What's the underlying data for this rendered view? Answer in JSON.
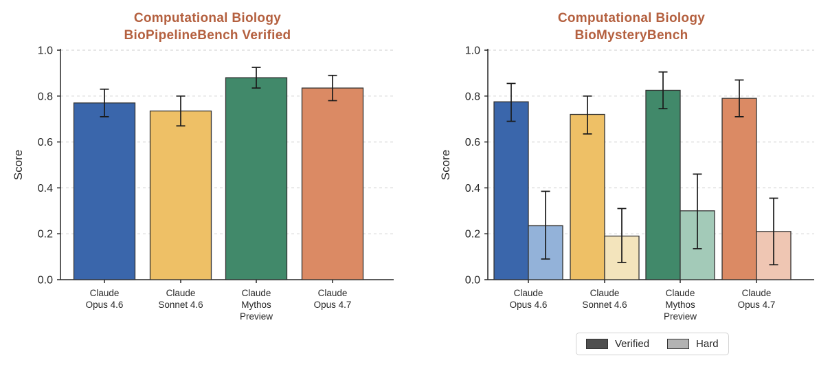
{
  "page": {
    "background": "#ffffff",
    "title_color": "#b4603f",
    "axis_color": "#262626",
    "grid_color": "#d8d8d8",
    "bar_edge_color": "#333333",
    "error_bar_color": "#1a1a1a"
  },
  "chart_data": [
    {
      "type": "bar",
      "title": "Computational Biology BioPipelineBench Verified",
      "title_lines": [
        "Computational Biology",
        "BioPipelineBench Verified"
      ],
      "xlabel": "",
      "ylabel": "Score",
      "ylim": [
        0.0,
        1.0
      ],
      "yticks": [
        "0.0",
        "0.2",
        "0.4",
        "0.6",
        "0.8",
        "1.0"
      ],
      "ytick_values": [
        0.0,
        0.2,
        0.4,
        0.6,
        0.8,
        1.0
      ],
      "grid": "horizontal-dashed",
      "categories": [
        "Claude Opus 4.6",
        "Claude Sonnet 4.6",
        "Claude Mythos Preview",
        "Claude Opus 4.7"
      ],
      "category_lines": [
        [
          "Claude",
          "Opus 4.6"
        ],
        [
          "Claude",
          "Sonnet 4.6"
        ],
        [
          "Claude",
          "Mythos",
          "Preview"
        ],
        [
          "Claude",
          "Opus 4.7"
        ]
      ],
      "series": [
        {
          "name": "Verified",
          "values": [
            0.77,
            0.735,
            0.88,
            0.835
          ],
          "error_low": [
            0.71,
            0.67,
            0.835,
            0.78
          ],
          "error_high": [
            0.83,
            0.8,
            0.925,
            0.89
          ],
          "colors": [
            "#3a66ab",
            "#eec066",
            "#41896a",
            "#db8a64"
          ]
        }
      ]
    },
    {
      "type": "bar",
      "title": "Computational Biology BioMysteryBench",
      "title_lines": [
        "Computational Biology",
        "BioMysteryBench"
      ],
      "xlabel": "",
      "ylabel": "Score",
      "ylim": [
        0.0,
        1.0
      ],
      "yticks": [
        "0.0",
        "0.2",
        "0.4",
        "0.6",
        "0.8",
        "1.0"
      ],
      "ytick_values": [
        0.0,
        0.2,
        0.4,
        0.6,
        0.8,
        1.0
      ],
      "grid": "horizontal-dashed",
      "categories": [
        "Claude Opus 4.6",
        "Claude Sonnet 4.6",
        "Claude Mythos Preview",
        "Claude Opus 4.7"
      ],
      "category_lines": [
        [
          "Claude",
          "Opus 4.6"
        ],
        [
          "Claude",
          "Sonnet 4.6"
        ],
        [
          "Claude",
          "Mythos",
          "Preview"
        ],
        [
          "Claude",
          "Opus 4.7"
        ]
      ],
      "series": [
        {
          "name": "Verified",
          "values": [
            0.775,
            0.72,
            0.825,
            0.79
          ],
          "error_low": [
            0.69,
            0.635,
            0.745,
            0.71
          ],
          "error_high": [
            0.855,
            0.8,
            0.905,
            0.87
          ],
          "colors": [
            "#3a66ab",
            "#eec066",
            "#41896a",
            "#db8a64"
          ]
        },
        {
          "name": "Hard",
          "values": [
            0.235,
            0.19,
            0.3,
            0.21
          ],
          "error_low": [
            0.09,
            0.075,
            0.135,
            0.065
          ],
          "error_high": [
            0.385,
            0.31,
            0.46,
            0.355
          ],
          "colors": [
            "#93b2d9",
            "#f3e4bc",
            "#a3cab8",
            "#efc6b3"
          ]
        }
      ],
      "legend": {
        "position": "below",
        "entries": [
          {
            "label": "Verified",
            "swatch": "#4f4f4f"
          },
          {
            "label": "Hard",
            "swatch": "#b3b3b3"
          }
        ]
      }
    }
  ]
}
